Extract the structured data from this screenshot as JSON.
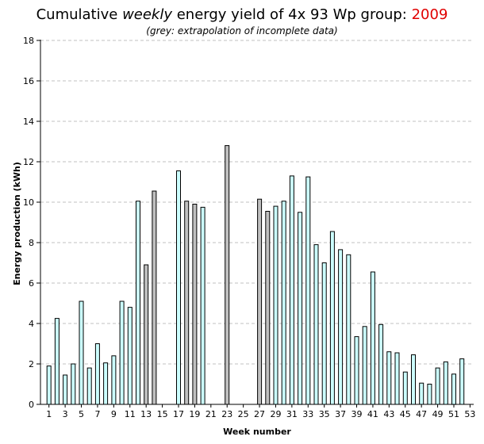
{
  "title": {
    "prefix": "Cumulative ",
    "emphasis": "weekly",
    "middle": " energy yield of 4x 93 Wp group: ",
    "year": "2009"
  },
  "subtitle": "(grey: extrapolation of incomplete data)",
  "chart_data": {
    "type": "bar",
    "xlabel": "Week number",
    "ylabel": "Energy production (kWh)",
    "ylim": [
      0,
      18
    ],
    "yticks": [
      0,
      2,
      4,
      6,
      8,
      10,
      12,
      14,
      16,
      18
    ],
    "xtick_labels": [
      1,
      3,
      5,
      7,
      9,
      11,
      13,
      15,
      17,
      19,
      21,
      23,
      25,
      27,
      29,
      31,
      33,
      35,
      37,
      39,
      41,
      43,
      45,
      47,
      49,
      51,
      53
    ],
    "grid": "horizontal dashed",
    "colors": {
      "measured": "#ccffff",
      "extrapolated": "#c0c0c0",
      "year": "#e00000",
      "grid": "#c0c0c0"
    },
    "weeks": [
      1,
      2,
      3,
      4,
      5,
      6,
      7,
      8,
      9,
      10,
      11,
      12,
      13,
      14,
      15,
      16,
      17,
      18,
      19,
      20,
      21,
      22,
      23,
      24,
      25,
      26,
      27,
      28,
      29,
      30,
      31,
      32,
      33,
      34,
      35,
      36,
      37,
      38,
      39,
      40,
      41,
      42,
      43,
      44,
      45,
      46,
      47,
      48,
      49,
      50,
      51,
      52,
      53
    ],
    "values": [
      1.9,
      4.25,
      1.45,
      2.0,
      5.1,
      1.8,
      3.0,
      2.05,
      2.4,
      5.1,
      4.8,
      10.05,
      6.9,
      10.55,
      null,
      null,
      11.55,
      10.05,
      9.9,
      9.75,
      null,
      null,
      12.8,
      null,
      null,
      null,
      10.15,
      9.55,
      9.8,
      10.05,
      11.3,
      9.5,
      11.25,
      7.9,
      7.0,
      8.55,
      7.65,
      7.4,
      3.35,
      3.85,
      6.55,
      3.95,
      2.6,
      2.55,
      1.6,
      2.45,
      1.05,
      1.0,
      1.8,
      2.1,
      1.5,
      2.25,
      null
    ],
    "extrapolated": [
      13,
      14,
      18,
      19,
      23,
      27,
      28
    ]
  }
}
